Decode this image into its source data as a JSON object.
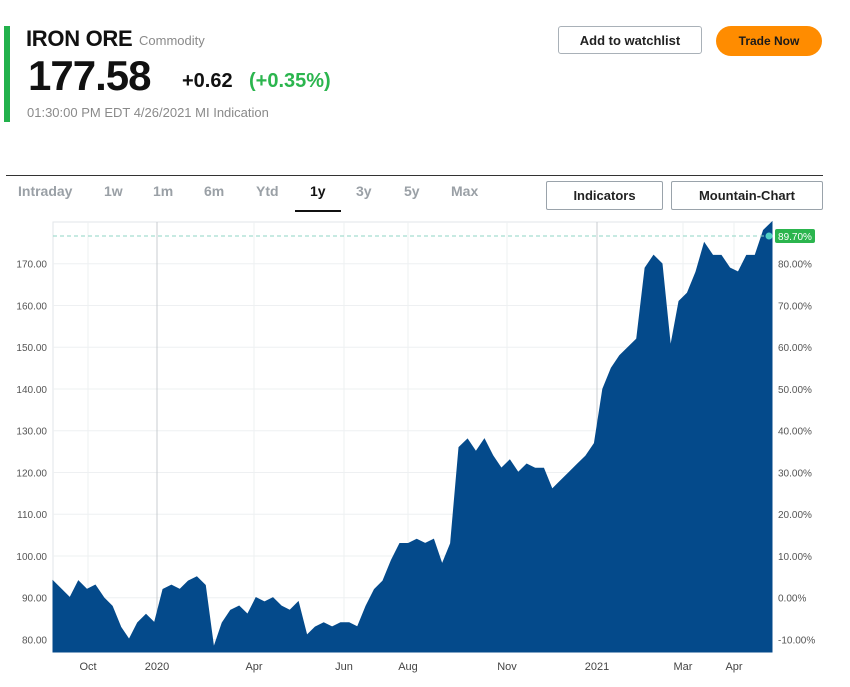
{
  "header": {
    "name": "IRON ORE",
    "type": "Commodity",
    "price": "177.58",
    "change": "+0.62",
    "change_pct": "(+0.35%)",
    "timestamp": "01:30:00 PM EDT 4/26/2021 MI Indication"
  },
  "actions": {
    "watchlist": "Add to watchlist",
    "trade": "Trade Now"
  },
  "tabs": [
    {
      "label": "Intraday"
    },
    {
      "label": "1w"
    },
    {
      "label": "1m"
    },
    {
      "label": "6m"
    },
    {
      "label": "Ytd"
    },
    {
      "label": "1y",
      "active": true
    },
    {
      "label": "3y"
    },
    {
      "label": "5y"
    },
    {
      "label": "Max"
    }
  ],
  "tools": {
    "indicators": "Indicators",
    "chart_type": "Mountain-Chart"
  },
  "colors": {
    "accent": "#22b14c",
    "area": "#044a8b",
    "positive": "#2bb54e",
    "trade": "#ff8c00"
  },
  "chart_data": {
    "type": "area",
    "x_ticks": [
      "Oct",
      "2020",
      "Apr",
      "Jun",
      "Aug",
      "Nov",
      "2021",
      "Mar",
      "Apr"
    ],
    "y_left_ticks": [
      "170.00",
      "160.00",
      "150.00",
      "140.00",
      "130.00",
      "120.00",
      "110.00",
      "100.00",
      "90.00",
      "80.00"
    ],
    "y_right_ticks": [
      "80.00%",
      "70.00%",
      "60.00%",
      "50.00%",
      "40.00%",
      "30.00%",
      "20.00%",
      "10.00%",
      "0.00%",
      "-10.00%"
    ],
    "ylim": [
      77,
      180
    ],
    "last_pct_label": "89.70%",
    "grid": true,
    "series": [
      {
        "values": [
          94,
          92,
          90,
          94,
          92,
          93,
          90,
          88,
          83,
          80,
          84,
          86,
          84,
          92,
          93,
          92,
          94,
          95,
          93,
          78,
          84,
          87,
          88,
          86,
          90,
          89,
          90,
          88,
          87,
          89,
          81,
          83,
          84,
          83,
          84,
          84,
          83,
          88,
          92,
          94,
          99,
          103,
          103,
          104,
          103,
          104,
          98,
          103,
          126,
          128,
          125,
          128,
          124,
          121,
          123,
          120,
          122,
          121,
          121,
          116,
          118,
          120,
          122,
          124,
          127,
          140,
          145,
          148,
          150,
          152,
          169,
          172,
          170,
          150,
          161,
          163,
          168,
          175,
          172,
          172,
          169,
          168,
          172,
          172,
          178,
          180
        ]
      }
    ]
  }
}
